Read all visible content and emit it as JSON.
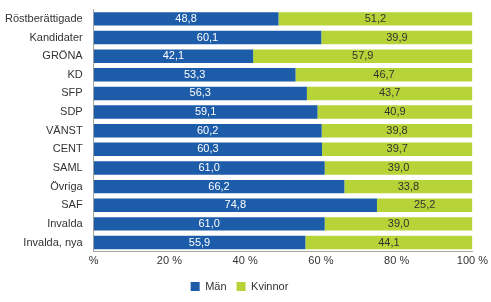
{
  "chart_data": {
    "type": "bar",
    "orientation": "horizontal",
    "stacked": true,
    "categories": [
      "Röstberättigade",
      "Kandidater",
      "GRÖNA",
      "KD",
      "SFP",
      "SDP",
      "VÄNST",
      "CENT",
      "SAML",
      "Övriga",
      "SAF",
      "Invalda",
      "Invalda, nya"
    ],
    "series": [
      {
        "name": "Män",
        "color": "#1c5ca8",
        "values": [
          48.8,
          60.1,
          42.1,
          53.3,
          56.3,
          59.1,
          60.2,
          60.3,
          61.0,
          66.2,
          74.8,
          61.0,
          55.9
        ],
        "value_labels": [
          "48,8",
          "60,1",
          "42,1",
          "53,3",
          "56,3",
          "59,1",
          "60,2",
          "60,3",
          "61,0",
          "66,2",
          "74,8",
          "61,0",
          "55,9"
        ]
      },
      {
        "name": "Kvinnor",
        "color": "#b6d437",
        "values": [
          51.2,
          39.9,
          57.9,
          46.7,
          43.7,
          40.9,
          39.8,
          39.7,
          39.0,
          33.8,
          25.2,
          39.0,
          44.1
        ],
        "value_labels": [
          "51,2",
          "39,9",
          "57,9",
          "46,7",
          "43,7",
          "40,9",
          "39,8",
          "39,7",
          "39,0",
          "33,8",
          "25,2",
          "39,0",
          "44,1"
        ]
      }
    ],
    "xlim": [
      0,
      100
    ],
    "xticks": [
      {
        "value": 0,
        "label": "%"
      },
      {
        "value": 20,
        "label": "20 %"
      },
      {
        "value": 40,
        "label": "40 %"
      },
      {
        "value": 60,
        "label": "60 %"
      },
      {
        "value": 80,
        "label": "80 %"
      },
      {
        "value": 100,
        "label": "100 %"
      }
    ],
    "grid": false,
    "legend": "bottom",
    "data_labels": true
  }
}
